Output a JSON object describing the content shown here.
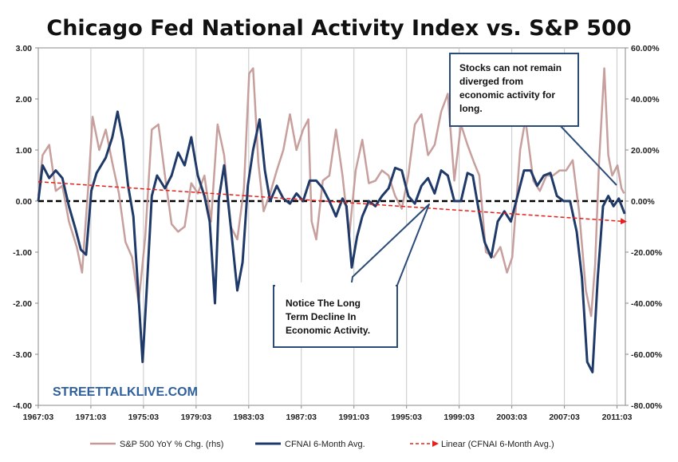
{
  "chart_data": {
    "type": "line",
    "title": "Chicago Fed National Activity Index vs. S&P 500",
    "watermark": "STREETTALKLIVE.COM",
    "x_ticks": [
      "1967:03",
      "1971:03",
      "1975:03",
      "1979:03",
      "1983:03",
      "1987:03",
      "1991:03",
      "1995:03",
      "1999:03",
      "2003:03",
      "2007:03",
      "2011:03"
    ],
    "xlim": [
      1967.17,
      2011.8
    ],
    "y_left": {
      "range": [
        -4,
        3
      ],
      "ticks": [
        "3.00",
        "2.00",
        "1.00",
        "0.00",
        "-1.00",
        "-2.00",
        "-3.00",
        "-4.00"
      ]
    },
    "y_right": {
      "range": [
        -80,
        60
      ],
      "ticks": [
        "60.00%",
        "40.00%",
        "20.00%",
        "0.00%",
        "-20.00%",
        "-40.00%",
        "-60.00%",
        "-80.00%"
      ]
    },
    "grid": "vertical",
    "zero_line": {
      "style": "black dashed",
      "y": 0
    },
    "legend_position": "bottom",
    "series": [
      {
        "name": "S&P 500 YoY % Chg. (rhs)",
        "axis": "right",
        "color": "#c49a98",
        "points": [
          [
            1967.17,
            2
          ],
          [
            1967.5,
            18
          ],
          [
            1968,
            22
          ],
          [
            1968.5,
            4
          ],
          [
            1969,
            6
          ],
          [
            1969.5,
            -8
          ],
          [
            1970.1,
            -18
          ],
          [
            1970.5,
            -28
          ],
          [
            1971,
            8
          ],
          [
            1971.3,
            33
          ],
          [
            1971.8,
            20
          ],
          [
            1972.3,
            28
          ],
          [
            1972.8,
            15
          ],
          [
            1973.3,
            3
          ],
          [
            1973.8,
            -16
          ],
          [
            1974.3,
            -22
          ],
          [
            1974.8,
            -40
          ],
          [
            1975.3,
            -14
          ],
          [
            1975.8,
            28
          ],
          [
            1976.3,
            30
          ],
          [
            1976.8,
            10
          ],
          [
            1977.3,
            -9
          ],
          [
            1977.8,
            -12
          ],
          [
            1978.3,
            -10
          ],
          [
            1978.8,
            7
          ],
          [
            1979.3,
            3
          ],
          [
            1979.8,
            10
          ],
          [
            1980.3,
            -8
          ],
          [
            1980.8,
            30
          ],
          [
            1981.3,
            18
          ],
          [
            1981.8,
            -10
          ],
          [
            1982.3,
            -15
          ],
          [
            1982.8,
            5
          ],
          [
            1983.2,
            50
          ],
          [
            1983.5,
            52
          ],
          [
            1983.9,
            15
          ],
          [
            1984.3,
            -4
          ],
          [
            1984.8,
            3
          ],
          [
            1985.3,
            12
          ],
          [
            1985.8,
            20
          ],
          [
            1986.3,
            34
          ],
          [
            1986.8,
            20
          ],
          [
            1987.3,
            28
          ],
          [
            1987.7,
            32
          ],
          [
            1987.95,
            -8
          ],
          [
            1988.3,
            -15
          ],
          [
            1988.8,
            8
          ],
          [
            1989.3,
            10
          ],
          [
            1989.8,
            28
          ],
          [
            1990.3,
            10
          ],
          [
            1990.8,
            -14
          ],
          [
            1991.3,
            12
          ],
          [
            1991.8,
            24
          ],
          [
            1992.3,
            7
          ],
          [
            1992.8,
            8
          ],
          [
            1993.3,
            12
          ],
          [
            1993.8,
            10
          ],
          [
            1994.3,
            2
          ],
          [
            1994.8,
            -3
          ],
          [
            1995.3,
            10
          ],
          [
            1995.8,
            30
          ],
          [
            1996.3,
            34
          ],
          [
            1996.8,
            18
          ],
          [
            1997.3,
            22
          ],
          [
            1997.8,
            35
          ],
          [
            1998.3,
            42
          ],
          [
            1998.8,
            8
          ],
          [
            1999.3,
            30
          ],
          [
            1999.8,
            22
          ],
          [
            2000.3,
            15
          ],
          [
            2000.7,
            10
          ],
          [
            2001.2,
            -20
          ],
          [
            2001.8,
            -22
          ],
          [
            2002.3,
            -18
          ],
          [
            2002.8,
            -28
          ],
          [
            2003.2,
            -22
          ],
          [
            2003.8,
            20
          ],
          [
            2004.2,
            32
          ],
          [
            2004.8,
            8
          ],
          [
            2005.3,
            4
          ],
          [
            2005.8,
            10
          ],
          [
            2006.3,
            10
          ],
          [
            2006.8,
            12
          ],
          [
            2007.3,
            12
          ],
          [
            2007.8,
            16
          ],
          [
            2008.3,
            -5
          ],
          [
            2008.8,
            -35
          ],
          [
            2009.2,
            -45
          ],
          [
            2009.5,
            -25
          ],
          [
            2009.8,
            15
          ],
          [
            2010.2,
            52
          ],
          [
            2010.5,
            18
          ],
          [
            2010.8,
            10
          ],
          [
            2011.2,
            14
          ],
          [
            2011.5,
            5
          ],
          [
            2011.7,
            3
          ]
        ]
      },
      {
        "name": "CFNAI 6-Month Avg.",
        "axis": "left",
        "color": "#1f3a68",
        "points": [
          [
            1967.17,
            0
          ],
          [
            1967.5,
            0.7
          ],
          [
            1968,
            0.45
          ],
          [
            1968.5,
            0.6
          ],
          [
            1969,
            0.45
          ],
          [
            1969.5,
            -0.1
          ],
          [
            1970,
            -0.55
          ],
          [
            1970.4,
            -0.95
          ],
          [
            1970.8,
            -1.05
          ],
          [
            1971.2,
            0.2
          ],
          [
            1971.6,
            0.55
          ],
          [
            1972.3,
            0.85
          ],
          [
            1972.8,
            1.25
          ],
          [
            1973.2,
            1.75
          ],
          [
            1973.6,
            1.2
          ],
          [
            1974,
            0.3
          ],
          [
            1974.4,
            -0.3
          ],
          [
            1974.7,
            -1.5
          ],
          [
            1975.1,
            -3.15
          ],
          [
            1975.4,
            -1.8
          ],
          [
            1975.8,
            0.1
          ],
          [
            1976.2,
            0.5
          ],
          [
            1976.8,
            0.25
          ],
          [
            1977.3,
            0.5
          ],
          [
            1977.8,
            0.95
          ],
          [
            1978.3,
            0.7
          ],
          [
            1978.8,
            1.25
          ],
          [
            1979.3,
            0.5
          ],
          [
            1979.8,
            0.1
          ],
          [
            1980.2,
            -0.4
          ],
          [
            1980.6,
            -2
          ],
          [
            1980.9,
            0.05
          ],
          [
            1981.3,
            0.7
          ],
          [
            1981.8,
            -0.5
          ],
          [
            1982.3,
            -1.75
          ],
          [
            1982.7,
            -1.2
          ],
          [
            1983.1,
            0.3
          ],
          [
            1983.5,
            1.0
          ],
          [
            1984,
            1.6
          ],
          [
            1984.4,
            0.6
          ],
          [
            1984.8,
            0.0
          ],
          [
            1985.3,
            0.3
          ],
          [
            1985.8,
            0.05
          ],
          [
            1986.3,
            -0.05
          ],
          [
            1986.8,
            0.15
          ],
          [
            1987.3,
            0.0
          ],
          [
            1987.8,
            0.4
          ],
          [
            1988.3,
            0.4
          ],
          [
            1988.8,
            0.25
          ],
          [
            1989.3,
            0.0
          ],
          [
            1989.8,
            -0.3
          ],
          [
            1990.3,
            0.05
          ],
          [
            1990.6,
            -0.1
          ],
          [
            1991,
            -1.3
          ],
          [
            1991.4,
            -0.7
          ],
          [
            1991.8,
            -0.3
          ],
          [
            1992.3,
            0.0
          ],
          [
            1992.8,
            -0.1
          ],
          [
            1993.3,
            0.1
          ],
          [
            1993.8,
            0.25
          ],
          [
            1994.3,
            0.65
          ],
          [
            1994.8,
            0.6
          ],
          [
            1995.3,
            0.1
          ],
          [
            1995.8,
            -0.05
          ],
          [
            1996.3,
            0.3
          ],
          [
            1996.8,
            0.45
          ],
          [
            1997.3,
            0.15
          ],
          [
            1997.8,
            0.6
          ],
          [
            1998.3,
            0.5
          ],
          [
            1998.8,
            0.0
          ],
          [
            1999.3,
            0.0
          ],
          [
            1999.8,
            0.55
          ],
          [
            2000.2,
            0.5
          ],
          [
            2000.6,
            -0.1
          ],
          [
            2001.1,
            -0.8
          ],
          [
            2001.6,
            -1.1
          ],
          [
            2002.1,
            -0.4
          ],
          [
            2002.6,
            -0.2
          ],
          [
            2003.1,
            -0.4
          ],
          [
            2003.6,
            0.1
          ],
          [
            2004.1,
            0.6
          ],
          [
            2004.6,
            0.6
          ],
          [
            2005.1,
            0.3
          ],
          [
            2005.6,
            0.5
          ],
          [
            2006.1,
            0.55
          ],
          [
            2006.6,
            0.1
          ],
          [
            2007.1,
            0.0
          ],
          [
            2007.6,
            0.0
          ],
          [
            2008.1,
            -0.6
          ],
          [
            2008.5,
            -1.5
          ],
          [
            2008.9,
            -3.15
          ],
          [
            2009.3,
            -3.35
          ],
          [
            2009.7,
            -1.5
          ],
          [
            2010.1,
            -0.1
          ],
          [
            2010.5,
            0.1
          ],
          [
            2010.9,
            -0.1
          ],
          [
            2011.3,
            0.05
          ],
          [
            2011.6,
            -0.15
          ],
          [
            2011.75,
            -0.25
          ]
        ]
      },
      {
        "name": "Linear (CFNAI 6-Month Avg.)",
        "axis": "left",
        "color": "#e8201c",
        "style": "dashed-arrow",
        "points": [
          [
            1967.17,
            0.38
          ],
          [
            2011.8,
            -0.4
          ]
        ]
      }
    ],
    "annotations": [
      {
        "text_lines": [
          "Stocks can not remain",
          "diverged from",
          "economic activity for",
          "long."
        ]
      },
      {
        "text_lines": [
          "Notice The Long",
          "Term Decline In",
          "Economic Activity."
        ]
      }
    ]
  }
}
